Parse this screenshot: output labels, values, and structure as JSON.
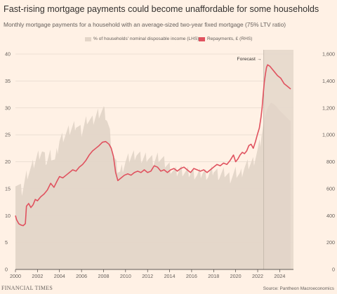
{
  "header": {
    "title": "Fast-rising mortgage payments could become unaffordable for some households",
    "subtitle": "Monthly mortgage payments for a household with an average-sized two-year fixed mortgage (75% LTV ratio)"
  },
  "footer": {
    "brand": "FINANCIAL TIMES",
    "source": "Source: Pantheon Macroeconomics"
  },
  "colors": {
    "background": "#fff1e5",
    "area": "#e3d5c8",
    "forecast_area": "#d6c8bb",
    "line": "#e0525f",
    "grid": "#e6d9ce",
    "text": "#66605c"
  },
  "chart_data": {
    "type": "area",
    "title": "Fast-rising mortgage payments could become unaffordable for some households",
    "subtitle": "Monthly mortgage payments for a household with an average-sized two-year fixed mortgage (75% LTV ratio)",
    "xlim": [
      2000,
      2025.25
    ],
    "x_ticks": [
      "2000",
      "2002",
      "2004",
      "2006",
      "2008",
      "2010",
      "2012",
      "2014",
      "2016",
      "2018",
      "2020",
      "2022",
      "2024"
    ],
    "left_axis": {
      "ylim": [
        0,
        40
      ],
      "ticks": [
        "0",
        "5",
        "10",
        "15",
        "20",
        "25",
        "30",
        "35",
        "40"
      ]
    },
    "right_axis": {
      "ylim": [
        0,
        1600
      ],
      "ticks": [
        "0",
        "200",
        "400",
        "600",
        "800",
        "1,000",
        "1,200",
        "1,400",
        "1,600"
      ]
    },
    "forecast": {
      "label": "Forecast →",
      "start": 2022.55
    },
    "grid": true,
    "legend_position": "top",
    "series": [
      {
        "name": "% of households' nominal disposable income (LHS)",
        "type": "area",
        "axis": "left",
        "x": [
          2000.0,
          2000.3,
          2000.6,
          2001.0,
          2001.5,
          2002.0,
          2002.4,
          2002.8,
          2003.2,
          2003.6,
          2004.0,
          2004.5,
          2005.0,
          2005.5,
          2006.0,
          2006.5,
          2007.0,
          2007.5,
          2008.0,
          2008.3,
          2008.6,
          2008.9,
          2009.2,
          2009.5,
          2010.0,
          2010.5,
          2011.0,
          2011.5,
          2012.0,
          2012.5,
          2013.0,
          2013.5,
          2014.0,
          2014.5,
          2015.0,
          2015.5,
          2016.0,
          2016.5,
          2017.0,
          2017.5,
          2018.0,
          2018.5,
          2019.0,
          2019.5,
          2020.0,
          2020.4,
          2020.8,
          2021.2,
          2021.6,
          2022.0,
          2022.3,
          2022.6,
          2022.9,
          2023.2,
          2023.6,
          2024.0,
          2024.5,
          2025.0
        ],
        "values": [
          16.5,
          15.5,
          14.5,
          17.5,
          19,
          21,
          22,
          20,
          21.5,
          20,
          24,
          25,
          26,
          27,
          25.5,
          28,
          27.5,
          29,
          29.5,
          28,
          25,
          21,
          19,
          18,
          20,
          21,
          21.5,
          20.5,
          21,
          20,
          21,
          20,
          19,
          18,
          18.5,
          18,
          18,
          17.5,
          18,
          17.5,
          18.5,
          17.5,
          18,
          17,
          18,
          17.5,
          19,
          19.5,
          20,
          22,
          24,
          28,
          30,
          31,
          30.5,
          29.5,
          28.5,
          27.5
        ]
      },
      {
        "name": "Repayments, £ (RHS)",
        "type": "line",
        "axis": "right",
        "x": [
          2000.0,
          2000.1,
          2000.3,
          2000.5,
          2000.7,
          2000.9,
          2001.0,
          2001.2,
          2001.4,
          2001.6,
          2001.8,
          2002.0,
          2002.3,
          2002.6,
          2002.9,
          2003.2,
          2003.5,
          2003.8,
          2004.0,
          2004.3,
          2004.6,
          2004.9,
          2005.2,
          2005.5,
          2005.8,
          2006.1,
          2006.4,
          2006.7,
          2007.0,
          2007.3,
          2007.6,
          2007.9,
          2008.2,
          2008.5,
          2008.7,
          2008.9,
          2009.1,
          2009.3,
          2009.6,
          2009.9,
          2010.2,
          2010.5,
          2010.8,
          2011.1,
          2011.4,
          2011.7,
          2012.0,
          2012.3,
          2012.6,
          2012.9,
          2013.2,
          2013.5,
          2013.8,
          2014.1,
          2014.4,
          2014.7,
          2015.0,
          2015.3,
          2015.6,
          2015.9,
          2016.2,
          2016.5,
          2016.8,
          2017.1,
          2017.4,
          2017.7,
          2018.0,
          2018.3,
          2018.6,
          2018.9,
          2019.2,
          2019.5,
          2019.8,
          2020.0,
          2020.2,
          2020.4,
          2020.6,
          2020.8,
          2021.0,
          2021.2,
          2021.4,
          2021.6,
          2021.8,
          2022.0,
          2022.15,
          2022.3,
          2022.4,
          2022.5,
          2022.6,
          2022.7,
          2022.8,
          2022.9,
          2023.1,
          2023.3,
          2023.5,
          2023.8,
          2024.1,
          2024.4,
          2024.7,
          2025.0
        ],
        "values": [
          400,
          370,
          340,
          330,
          325,
          340,
          470,
          490,
          460,
          480,
          520,
          510,
          540,
          560,
          590,
          640,
          610,
          660,
          690,
          680,
          700,
          720,
          740,
          730,
          760,
          780,
          810,
          850,
          880,
          900,
          920,
          945,
          950,
          930,
          900,
          840,
          720,
          660,
          680,
          700,
          710,
          700,
          720,
          730,
          720,
          740,
          720,
          730,
          770,
          760,
          730,
          740,
          720,
          740,
          750,
          730,
          750,
          760,
          740,
          720,
          750,
          740,
          730,
          740,
          720,
          740,
          760,
          780,
          770,
          790,
          780,
          810,
          850,
          800,
          820,
          850,
          870,
          860,
          880,
          920,
          930,
          900,
          950,
          1010,
          1050,
          1130,
          1200,
          1300,
          1390,
          1450,
          1500,
          1520,
          1510,
          1490,
          1470,
          1440,
          1420,
          1380,
          1360,
          1340
        ]
      }
    ]
  }
}
